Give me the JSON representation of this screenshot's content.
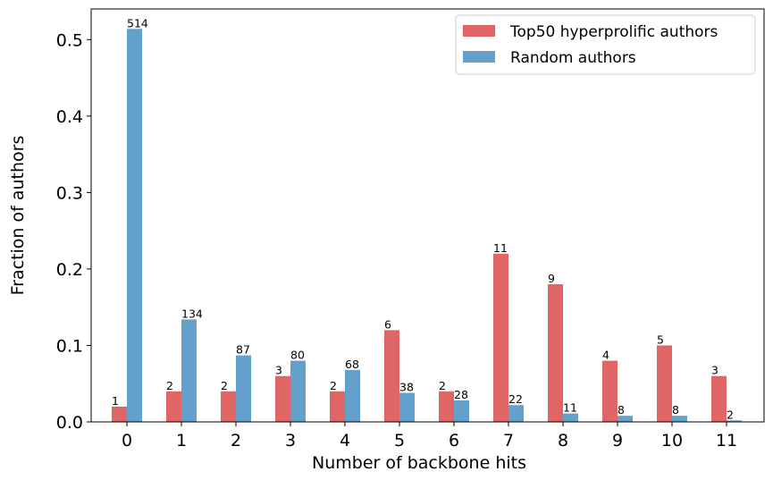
{
  "chart_data": {
    "type": "bar",
    "categories": [
      "0",
      "1",
      "2",
      "3",
      "4",
      "5",
      "6",
      "7",
      "8",
      "9",
      "10",
      "11"
    ],
    "series": [
      {
        "name": "Top50 hyperprolific authors",
        "color": "#e06666",
        "values": [
          0.02,
          0.04,
          0.04,
          0.06,
          0.04,
          0.12,
          0.04,
          0.22,
          0.18,
          0.08,
          0.1,
          0.06
        ],
        "counts": [
          "1",
          "2",
          "2",
          "3",
          "2",
          "6",
          "2",
          "11",
          "9",
          "4",
          "5",
          "3"
        ]
      },
      {
        "name": "Random authors",
        "color": "#64a0cc",
        "values": [
          0.514,
          0.134,
          0.087,
          0.08,
          0.068,
          0.038,
          0.028,
          0.022,
          0.011,
          0.008,
          0.008,
          0.002
        ],
        "counts": [
          "514",
          "134",
          "87",
          "80",
          "68",
          "38",
          "28",
          "22",
          "11",
          "8",
          "8",
          "2"
        ]
      }
    ],
    "xlabel": "Number of backbone hits",
    "ylabel": "Fraction of authors",
    "ylim": [
      0,
      0.54
    ],
    "yticks": [
      "0.0",
      "0.1",
      "0.2",
      "0.3",
      "0.4",
      "0.5"
    ],
    "ytick_values": [
      0,
      0.1,
      0.2,
      0.3,
      0.4,
      0.5
    ],
    "grid": false,
    "legend_position": "top-right"
  }
}
